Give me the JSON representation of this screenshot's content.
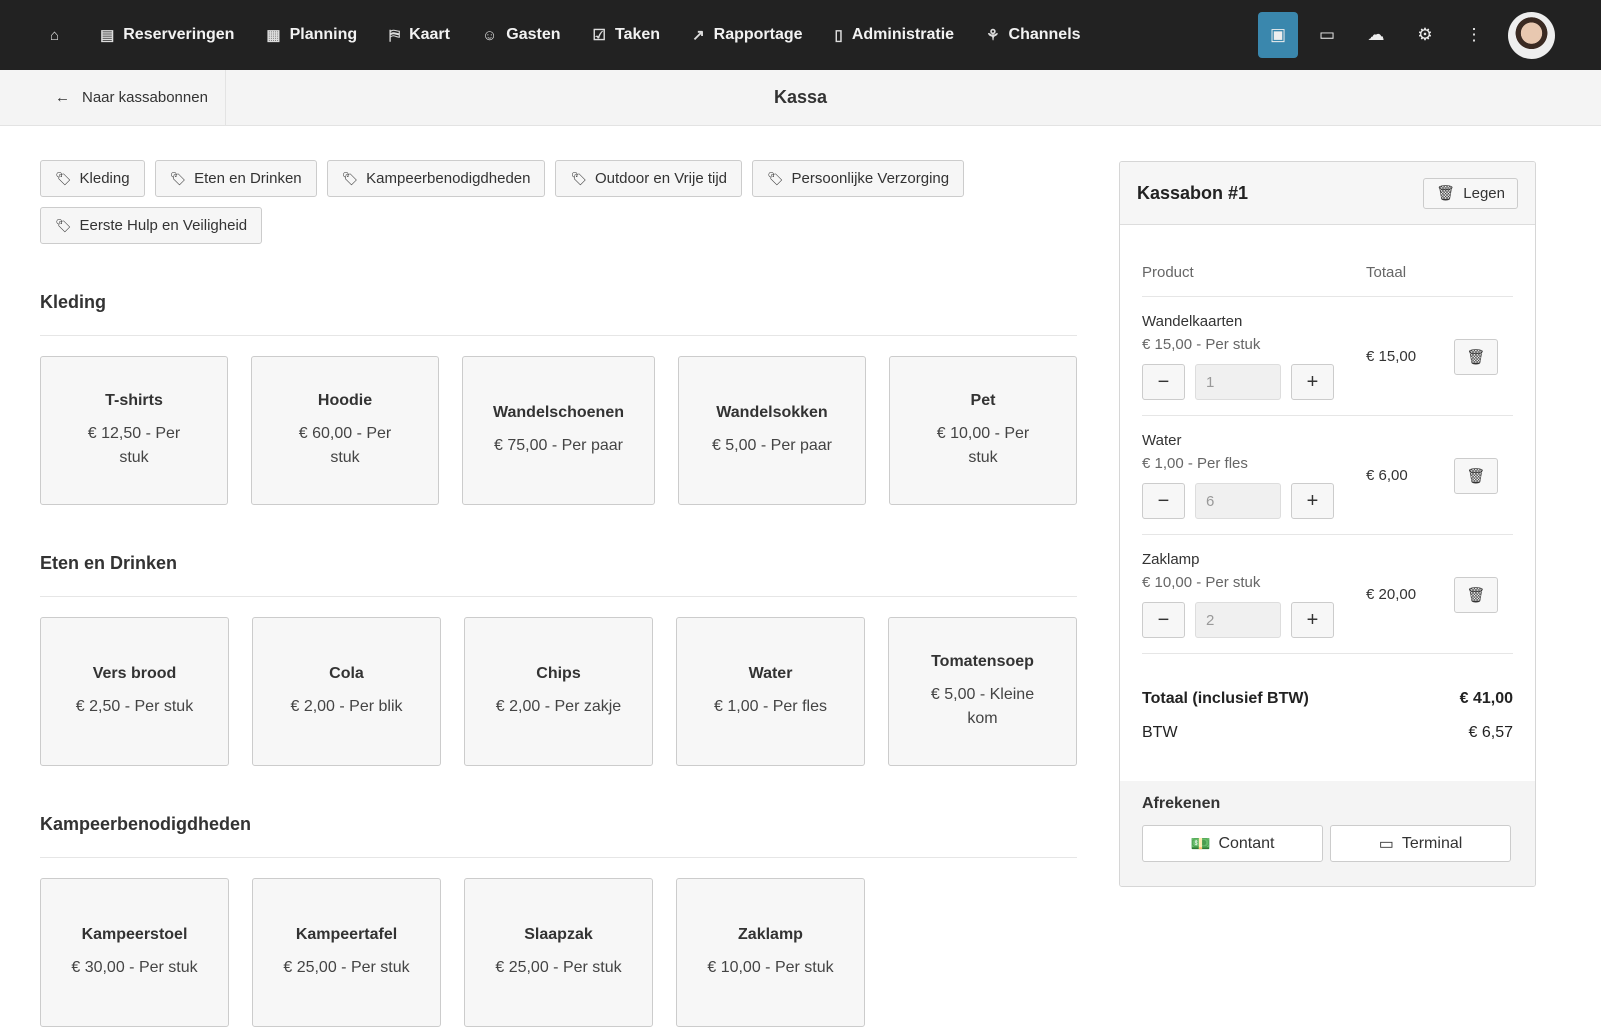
{
  "nav": {
    "items": [
      {
        "icon": "home-icon",
        "glyph": "⌂",
        "label": ""
      },
      {
        "icon": "book-icon",
        "glyph": "▤",
        "label": "Reserveringen"
      },
      {
        "icon": "calendar-icon",
        "glyph": "▦",
        "label": "Planning"
      },
      {
        "icon": "map-icon",
        "glyph": "⛿",
        "label": "Kaart"
      },
      {
        "icon": "users-icon",
        "glyph": "☺",
        "label": "Gasten"
      },
      {
        "icon": "clipboard-icon",
        "glyph": "☑",
        "label": "Taken"
      },
      {
        "icon": "chart-icon",
        "glyph": "↗",
        "label": "Rapportage"
      },
      {
        "icon": "ledger-icon",
        "glyph": "▯",
        "label": "Administratie"
      },
      {
        "icon": "channels-icon",
        "glyph": "⚘",
        "label": "Channels"
      }
    ],
    "right": [
      {
        "icon": "cash-register-icon",
        "glyph": "▣",
        "active": true
      },
      {
        "icon": "money-icon",
        "glyph": "▭"
      },
      {
        "icon": "cloud-download-icon",
        "glyph": "☁"
      },
      {
        "icon": "gear-icon",
        "glyph": "⚙"
      },
      {
        "icon": "more-vertical-icon",
        "glyph": "⋮"
      }
    ]
  },
  "subheader": {
    "back_label": "Naar kassabonnen",
    "title": "Kassa"
  },
  "categories": [
    "Kleding",
    "Eten en Drinken",
    "Kampeerbenodigdheden",
    "Outdoor en Vrije tijd",
    "Persoonlijke Verzorging",
    "Eerste Hulp en Veiligheid"
  ],
  "sections": [
    {
      "title": "Kleding",
      "products": [
        {
          "name": "T-shirts",
          "price": "€ 12,50 - Per stuk"
        },
        {
          "name": "Hoodie",
          "price": "€ 60,00 - Per stuk"
        },
        {
          "name": "Wandelschoenen",
          "price": "€ 75,00 - Per paar"
        },
        {
          "name": "Wandelsokken",
          "price": "€ 5,00 - Per paar"
        },
        {
          "name": "Pet",
          "price": "€ 10,00 - Per stuk"
        }
      ]
    },
    {
      "title": "Eten en Drinken",
      "products": [
        {
          "name": "Vers brood",
          "price": "€ 2,50 - Per stuk"
        },
        {
          "name": "Cola",
          "price": "€ 2,00 - Per blik"
        },
        {
          "name": "Chips",
          "price": "€ 2,00 - Per zakje"
        },
        {
          "name": "Water",
          "price": "€ 1,00 - Per fles"
        },
        {
          "name": "Tomatensoep",
          "price": "€ 5,00 - Kleine kom"
        }
      ]
    },
    {
      "title": "Kampeerbenodigdheden",
      "products": [
        {
          "name": "Kampeerstoel",
          "price": "€ 30,00 - Per stuk"
        },
        {
          "name": "Kampeertafel",
          "price": "€ 25,00 - Per stuk"
        },
        {
          "name": "Slaapzak",
          "price": "€ 25,00 - Per stuk"
        },
        {
          "name": "Zaklamp",
          "price": "€ 10,00 - Per stuk"
        }
      ]
    }
  ],
  "receipt": {
    "title": "Kassabon #1",
    "clear_label": "Legen",
    "col_product": "Product",
    "col_total": "Totaal",
    "lines": [
      {
        "name": "Wandelkaarten",
        "price": "€ 15,00 - Per stuk",
        "qty": "1",
        "total": "€ 15,00"
      },
      {
        "name": "Water",
        "price": "€ 1,00 - Per fles",
        "qty": "6",
        "total": "€ 6,00"
      },
      {
        "name": "Zaklamp",
        "price": "€ 10,00 - Per stuk",
        "qty": "2",
        "total": "€ 20,00"
      }
    ],
    "total_label": "Totaal (inclusief BTW)",
    "total": "€ 41,00",
    "vat_label": "BTW",
    "vat": "€ 6,57",
    "checkout_title": "Afrekenen",
    "cash_label": "Contant",
    "terminal_label": "Terminal"
  },
  "colors": {
    "nav_bg": "#222222",
    "accent": "#3a87ad"
  }
}
